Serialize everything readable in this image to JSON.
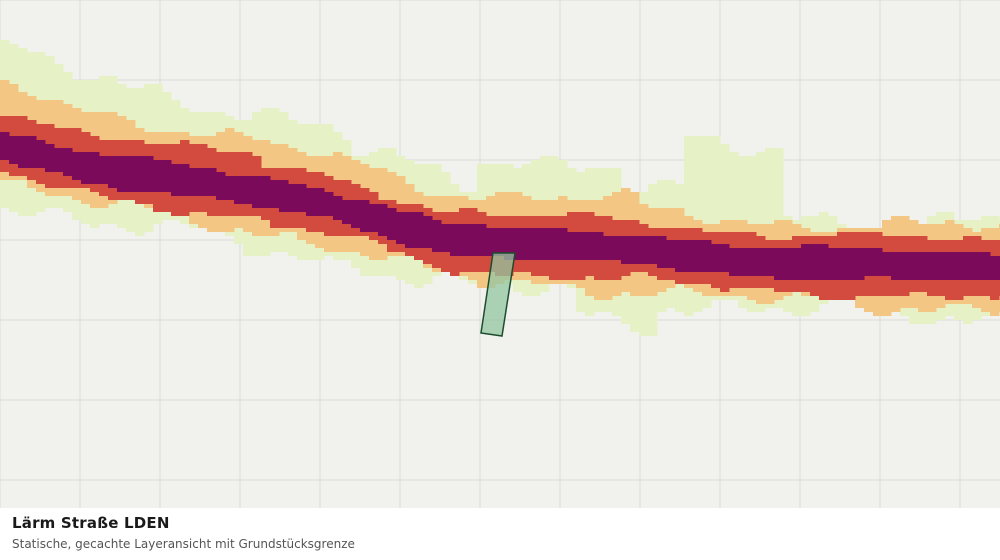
{
  "layer": {
    "title": "Lärm Straße LDEN",
    "subtitle": "Statische, gecachte Layeransicht mit Grundstücksgrenze"
  },
  "colors": {
    "background": "#f1f1ee",
    "grid": "#dcdcd6",
    "noise_band_1": "#e6f2c6",
    "noise_band_2": "#f4c684",
    "noise_band_3": "#d24b3e",
    "noise_band_4": "#7b0a5a",
    "parcel_fill": "#93c5a2",
    "parcel_stroke": "#1d4d2c"
  }
}
